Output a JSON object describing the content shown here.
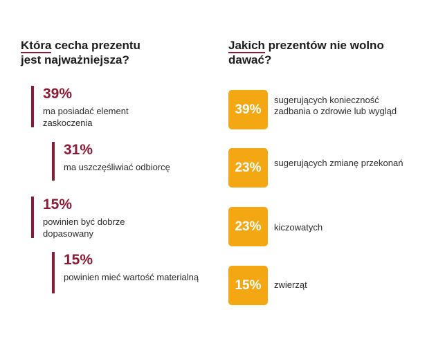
{
  "left_title": {
    "highlight": "Która",
    "rest_line1": " cecha prezentu",
    "line2": "jest najważniejsza?"
  },
  "right_title": {
    "highlight": "Jakich",
    "rest_line1": " prezentów nie wolno",
    "line2": "dawać?"
  },
  "chart_data": [
    {
      "type": "bar",
      "title": "Która cecha prezentu jest najważniejsza?",
      "categories": [
        "ma posiadać element zaskoczenia",
        "ma uszczęśliwiać odbiorcę",
        "powinien być dobrze dopasowany",
        "powinien mieć wartość materialną"
      ],
      "values": [
        39,
        31,
        15,
        15
      ],
      "labels": [
        "39%",
        "31%",
        "15%",
        "15%"
      ],
      "unit": "%"
    },
    {
      "type": "bar",
      "title": "Jakich prezentów nie wolno dawać?",
      "categories": [
        "sugerujących konieczność zadbania o zdrowie lub wygląd",
        "sugerujących zmianę przekonań",
        "kiczowatych",
        "zwierząt"
      ],
      "values": [
        39,
        23,
        23,
        15
      ],
      "labels": [
        "39%",
        "23%",
        "23%",
        "15%"
      ],
      "unit": "%"
    }
  ],
  "colors": {
    "accent": "#8b1a35",
    "badge": "#f3a712"
  }
}
